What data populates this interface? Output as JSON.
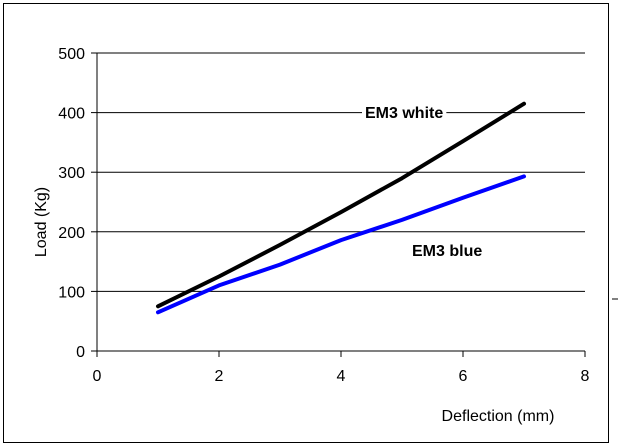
{
  "chart_data": {
    "type": "line",
    "xlabel": "Deflection (mm)",
    "ylabel": "Load  (Kg)",
    "xlim": [
      0,
      8
    ],
    "ylim": [
      0,
      500
    ],
    "x_ticks": [
      0,
      2,
      4,
      6,
      8
    ],
    "y_ticks": [
      0,
      100,
      200,
      300,
      400,
      500
    ],
    "grid": "horizontal",
    "series": [
      {
        "name": "EM3 white",
        "color": "#000000",
        "x": [
          1,
          2,
          3,
          4,
          5,
          6,
          7
        ],
        "y": [
          75,
          125,
          178,
          233,
          290,
          352,
          415
        ]
      },
      {
        "name": "EM3 blue",
        "color": "#0000ff",
        "x": [
          1,
          2,
          3,
          4,
          5,
          6,
          7
        ],
        "y": [
          65,
          110,
          145,
          186,
          220,
          257,
          293
        ]
      }
    ]
  }
}
